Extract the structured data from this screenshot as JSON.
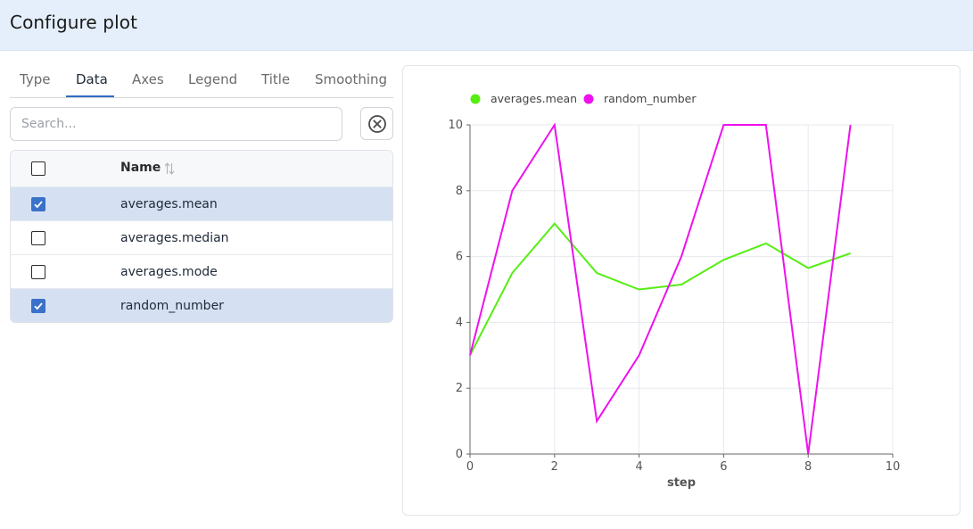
{
  "header": {
    "title": "Configure plot"
  },
  "tabs": [
    {
      "label": "Type",
      "active": false
    },
    {
      "label": "Data",
      "active": true
    },
    {
      "label": "Axes",
      "active": false
    },
    {
      "label": "Legend",
      "active": false
    },
    {
      "label": "Title",
      "active": false
    },
    {
      "label": "Smoothing",
      "active": false
    }
  ],
  "search": {
    "placeholder": "Search...",
    "value": ""
  },
  "table": {
    "column_name": "Name",
    "rows": [
      {
        "name": "averages.mean",
        "checked": true
      },
      {
        "name": "averages.median",
        "checked": false
      },
      {
        "name": "averages.mode",
        "checked": false
      },
      {
        "name": "random_number",
        "checked": true
      }
    ]
  },
  "colors": {
    "accent": "#2f6fc6",
    "checkbox": "#3a71c9",
    "selected_row": "#d5e1f3",
    "header_bg": "#e4effb"
  },
  "chart_data": {
    "type": "line",
    "title": "",
    "xlabel": "step",
    "ylabel": "",
    "xlim": [
      0,
      10
    ],
    "ylim": [
      0,
      10
    ],
    "xticks": [
      0,
      2,
      4,
      6,
      8,
      10
    ],
    "yticks": [
      0,
      2,
      4,
      6,
      8,
      10
    ],
    "legend_position": "top-left",
    "grid": true,
    "series": [
      {
        "name": "averages.mean",
        "color": "#55ee11",
        "x": [
          0,
          1,
          2,
          3,
          4,
          5,
          6,
          7,
          8,
          9
        ],
        "y": [
          3,
          5.5,
          7,
          5.5,
          5,
          5.15,
          5.9,
          6.4,
          5.65,
          6.1
        ]
      },
      {
        "name": "random_number",
        "color": "#ee11ee",
        "x": [
          0,
          1,
          2,
          3,
          4,
          5,
          6,
          7,
          8,
          9
        ],
        "y": [
          3,
          8,
          10,
          1,
          3,
          6,
          10,
          10,
          0,
          10
        ]
      }
    ]
  }
}
